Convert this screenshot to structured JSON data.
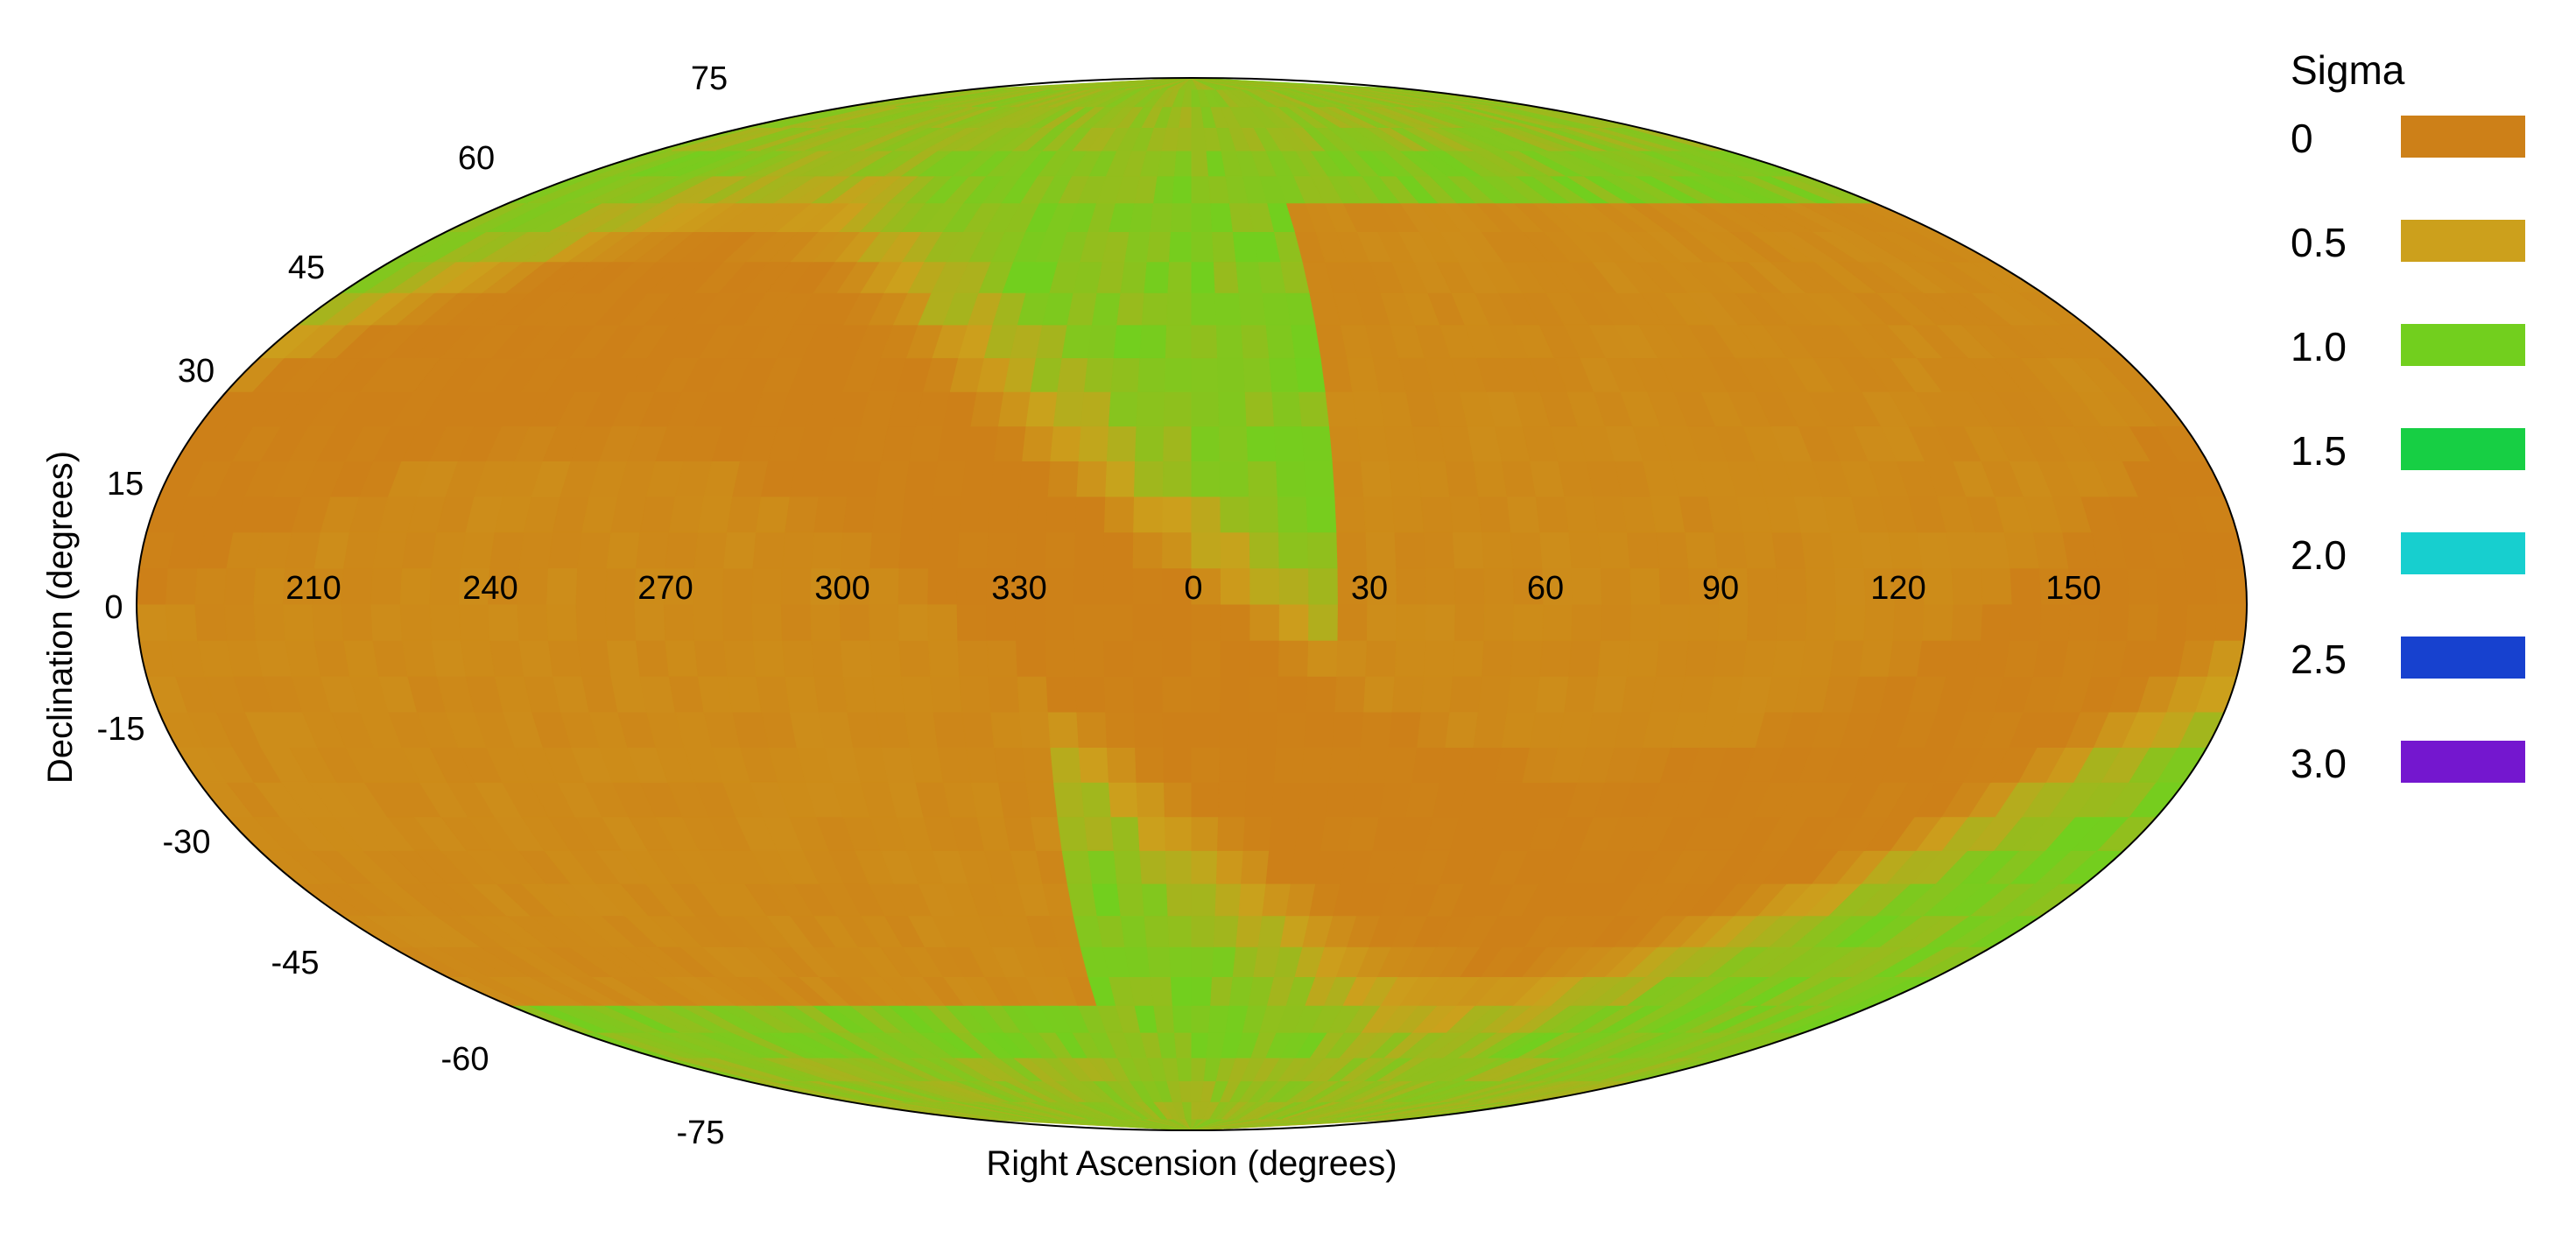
{
  "chart_data": {
    "type": "heatmap",
    "projection": "mollweide",
    "xlabel": "Right Ascension (degrees)",
    "ylabel": "Declination (degrees)",
    "ra_tick_labels": [
      "210",
      "240",
      "270",
      "300",
      "330",
      "0",
      "30",
      "60",
      "90",
      "120",
      "150"
    ],
    "dec_tick_labels": [
      "75",
      "60",
      "45",
      "30",
      "15",
      "0",
      "-15",
      "-30",
      "-45",
      "-60",
      "-75"
    ],
    "colorbar": {
      "title": "Sigma",
      "levels": [
        {
          "label": "0",
          "value": 0.0,
          "color": "#cd8018"
        },
        {
          "label": "0.5",
          "value": 0.5,
          "color": "#cca01c"
        },
        {
          "label": "1.0",
          "value": 1.0,
          "color": "#72cf1e"
        },
        {
          "label": "1.5",
          "value": 1.5,
          "color": "#17cf44"
        },
        {
          "label": "2.0",
          "value": 2.0,
          "color": "#17cfcf"
        },
        {
          "label": "2.5",
          "value": 2.5,
          "color": "#1741cf"
        },
        {
          "label": "3.0",
          "value": 3.0,
          "color": "#7417cf"
        }
      ]
    },
    "sigma_range": [
      0,
      3.0
    ],
    "low_significance_region": "orange S-shaped band (sigma ~0) across the map, higher sigma ~0.7-0.9 near celestial poles and in northern-west / southern-east lobes",
    "grid": false
  }
}
